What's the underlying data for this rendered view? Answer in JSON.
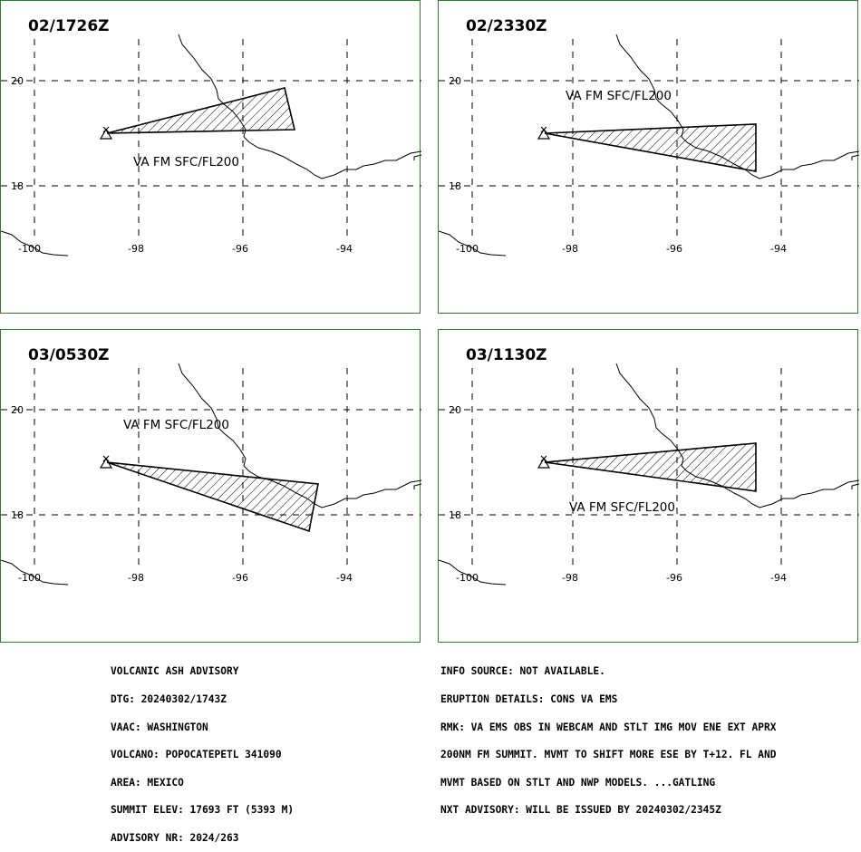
{
  "map": {
    "lat_labels": [
      "20",
      "18"
    ],
    "lon_labels": [
      "-100",
      "-98",
      "-96",
      "-94"
    ],
    "plume_text": "VA FM SFC/FL200",
    "colors": {
      "border": "#2e7d2e",
      "line": "#000000"
    }
  },
  "panels": [
    {
      "title": "02/1726Z"
    },
    {
      "title": "02/2330Z"
    },
    {
      "title": "03/0530Z"
    },
    {
      "title": "03/1130Z"
    }
  ],
  "advisory_left": [
    "VOLCANIC ASH ADVISORY",
    "DTG: 20240302/1743Z",
    "VAAC: WASHINGTON",
    "VOLCANO: POPOCATEPETL 341090",
    "AREA: MEXICO",
    "SUMMIT ELEV: 17693 FT (5393 M)",
    "ADVISORY NR: 2024/263"
  ],
  "advisory_right": [
    "INFO SOURCE: NOT AVAILABLE.",
    "ERUPTION DETAILS: CONS VA EMS",
    "RMK: VA EMS OBS IN WEBCAM AND STLT IMG MOV ENE EXT APRX",
    "200NM FM SUMMIT. MVMT TO SHIFT MORE ESE BY T+12. FL AND",
    "MVMT BASED ON STLT AND NWP MODELS. ...GATLING",
    "NXT ADVISORY: WILL BE ISSUED BY 20240302/2345Z"
  ]
}
